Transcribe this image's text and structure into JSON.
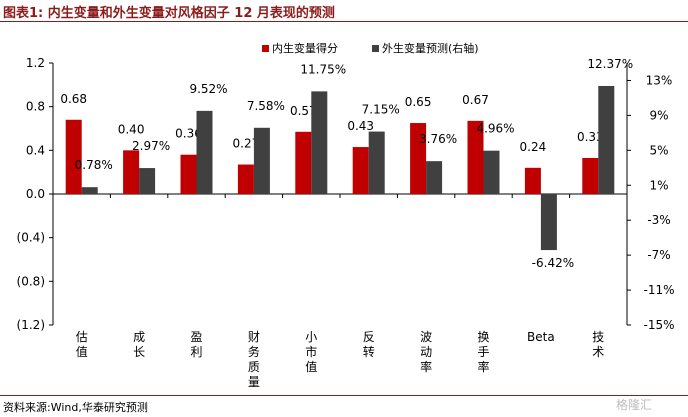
{
  "header": {
    "title": "图表1:  内生变量和外生变量对风格因子 12 月表现的预测"
  },
  "footer": {
    "source": "资料来源:Wind,华泰研究预测",
    "watermark": "格隆汇"
  },
  "colors": {
    "primary": "#c00000",
    "secondary": "#404040",
    "title": "#8b1c1c"
  },
  "chart_data": {
    "type": "bar",
    "categories": [
      "估值",
      "成长",
      "盈利",
      "财务质量",
      "小市值",
      "反转",
      "波动率",
      "换手率",
      "Beta",
      "技术"
    ],
    "series": [
      {
        "name": "内生变量得分",
        "axis": "left",
        "values": [
          0.68,
          0.4,
          0.36,
          0.27,
          0.57,
          0.43,
          0.65,
          0.67,
          0.24,
          0.33
        ],
        "labels": [
          "0.68",
          "0.40",
          "0.36",
          "0.27",
          "0.57",
          "0.43",
          "0.65",
          "0.67",
          "0.24",
          "0.33"
        ]
      },
      {
        "name": "外生变量预测(右轴)",
        "axis": "right",
        "values": [
          0.78,
          2.97,
          9.52,
          7.58,
          11.75,
          7.15,
          3.76,
          4.96,
          -6.42,
          12.37
        ],
        "labels": [
          "0.78%",
          "2.97%",
          "9.52%",
          "7.58%",
          "11.75%",
          "7.15%",
          "3.76%",
          "4.96%",
          "-6.42%",
          "12.37%"
        ]
      }
    ],
    "left_axis": {
      "ylim": [
        -1.2,
        1.2
      ],
      "ticks": [
        1.2,
        0.8,
        0.4,
        0.0,
        -0.4,
        -0.8,
        -1.2
      ],
      "tick_labels": [
        "1.2",
        "0.8",
        "0.4",
        "0.0",
        "(0.4)",
        "(0.8)",
        "(1.2)"
      ]
    },
    "right_axis": {
      "ylim": [
        -15,
        15
      ],
      "ticks": [
        13,
        9,
        5,
        1,
        -3,
        -7,
        -11,
        -15
      ],
      "tick_labels": [
        "13%",
        "9%",
        "5%",
        "1%",
        "-3%",
        "-7%",
        "-11%",
        "-15%"
      ]
    },
    "legend": "top-center",
    "grid": false
  }
}
